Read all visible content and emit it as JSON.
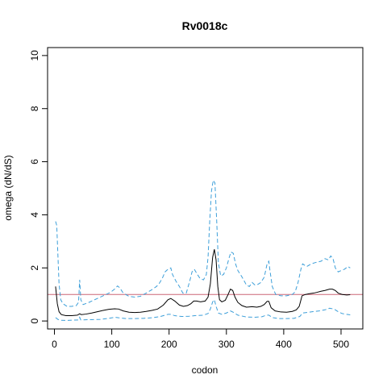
{
  "chart_data": {
    "type": "line",
    "title": "Rv0018c",
    "xlabel": "codon",
    "ylabel": "omega (dN/dS)",
    "xlim": [
      -12,
      538
    ],
    "ylim": [
      -0.3,
      10.3
    ],
    "x_ticks": [
      0,
      100,
      200,
      300,
      400,
      500
    ],
    "y_ticks": [
      0,
      2,
      4,
      6,
      8,
      10
    ],
    "grid": false,
    "legend": "none",
    "reference_line": {
      "y": 1,
      "color": "#cc6677"
    },
    "series": [
      {
        "style": "solid",
        "color": "#000000",
        "points": [
          [
            2,
            1.3
          ],
          [
            5,
            0.65
          ],
          [
            8,
            0.35
          ],
          [
            12,
            0.24
          ],
          [
            20,
            0.2
          ],
          [
            30,
            0.2
          ],
          [
            40,
            0.22
          ],
          [
            44,
            0.27
          ],
          [
            47,
            0.24
          ],
          [
            55,
            0.26
          ],
          [
            65,
            0.3
          ],
          [
            75,
            0.35
          ],
          [
            85,
            0.4
          ],
          [
            95,
            0.44
          ],
          [
            105,
            0.46
          ],
          [
            112,
            0.45
          ],
          [
            120,
            0.38
          ],
          [
            130,
            0.33
          ],
          [
            140,
            0.32
          ],
          [
            150,
            0.33
          ],
          [
            160,
            0.36
          ],
          [
            170,
            0.4
          ],
          [
            180,
            0.45
          ],
          [
            190,
            0.6
          ],
          [
            198,
            0.8
          ],
          [
            203,
            0.85
          ],
          [
            210,
            0.75
          ],
          [
            218,
            0.6
          ],
          [
            225,
            0.55
          ],
          [
            232,
            0.58
          ],
          [
            238,
            0.65
          ],
          [
            243,
            0.75
          ],
          [
            248,
            0.75
          ],
          [
            255,
            0.72
          ],
          [
            263,
            0.75
          ],
          [
            268,
            0.9
          ],
          [
            272,
            1.4
          ],
          [
            276,
            2.4
          ],
          [
            279,
            2.7
          ],
          [
            282,
            2.3
          ],
          [
            285,
            1.3
          ],
          [
            288,
            0.8
          ],
          [
            292,
            0.72
          ],
          [
            298,
            0.78
          ],
          [
            303,
            1.0
          ],
          [
            307,
            1.2
          ],
          [
            311,
            1.15
          ],
          [
            315,
            0.9
          ],
          [
            320,
            0.7
          ],
          [
            327,
            0.58
          ],
          [
            335,
            0.52
          ],
          [
            345,
            0.54
          ],
          [
            353,
            0.52
          ],
          [
            360,
            0.55
          ],
          [
            366,
            0.62
          ],
          [
            371,
            0.74
          ],
          [
            374,
            0.74
          ],
          [
            378,
            0.5
          ],
          [
            385,
            0.38
          ],
          [
            395,
            0.34
          ],
          [
            405,
            0.33
          ],
          [
            415,
            0.36
          ],
          [
            422,
            0.42
          ],
          [
            427,
            0.55
          ],
          [
            432,
            0.95
          ],
          [
            438,
            1.0
          ],
          [
            445,
            1.03
          ],
          [
            452,
            1.05
          ],
          [
            458,
            1.08
          ],
          [
            465,
            1.12
          ],
          [
            472,
            1.15
          ],
          [
            480,
            1.2
          ],
          [
            485,
            1.2
          ],
          [
            490,
            1.15
          ],
          [
            495,
            1.05
          ],
          [
            502,
            1.0
          ],
          [
            510,
            0.98
          ],
          [
            516,
            0.99
          ]
        ]
      },
      {
        "style": "dashed",
        "color": "#3d9fd9",
        "points": [
          [
            2,
            3.75
          ],
          [
            4,
            3.6
          ],
          [
            6,
            2.5
          ],
          [
            8,
            1.4
          ],
          [
            11,
            0.8
          ],
          [
            15,
            0.65
          ],
          [
            22,
            0.55
          ],
          [
            30,
            0.55
          ],
          [
            38,
            0.58
          ],
          [
            42,
            0.7
          ],
          [
            44,
            1.55
          ],
          [
            46,
            0.8
          ],
          [
            50,
            0.62
          ],
          [
            58,
            0.68
          ],
          [
            68,
            0.78
          ],
          [
            78,
            0.88
          ],
          [
            88,
            0.98
          ],
          [
            98,
            1.08
          ],
          [
            106,
            1.22
          ],
          [
            110,
            1.32
          ],
          [
            114,
            1.25
          ],
          [
            120,
            1.05
          ],
          [
            130,
            0.93
          ],
          [
            140,
            0.9
          ],
          [
            150,
            0.93
          ],
          [
            160,
            1.05
          ],
          [
            170,
            1.18
          ],
          [
            178,
            1.3
          ],
          [
            183,
            1.42
          ],
          [
            188,
            1.6
          ],
          [
            193,
            1.85
          ],
          [
            198,
            1.95
          ],
          [
            203,
            2.0
          ],
          [
            206,
            1.75
          ],
          [
            212,
            1.5
          ],
          [
            218,
            1.3
          ],
          [
            224,
            1.05
          ],
          [
            230,
            1.05
          ],
          [
            236,
            1.5
          ],
          [
            240,
            1.85
          ],
          [
            244,
            1.95
          ],
          [
            248,
            1.8
          ],
          [
            254,
            1.6
          ],
          [
            260,
            1.55
          ],
          [
            265,
            1.75
          ],
          [
            268,
            2.4
          ],
          [
            271,
            3.8
          ],
          [
            274,
            4.9
          ],
          [
            277,
            5.3
          ],
          [
            280,
            5.2
          ],
          [
            283,
            3.8
          ],
          [
            286,
            2.2
          ],
          [
            290,
            1.7
          ],
          [
            295,
            1.75
          ],
          [
            300,
            2.0
          ],
          [
            305,
            2.4
          ],
          [
            308,
            2.6
          ],
          [
            312,
            2.55
          ],
          [
            316,
            2.15
          ],
          [
            320,
            1.9
          ],
          [
            326,
            1.7
          ],
          [
            330,
            1.55
          ],
          [
            335,
            1.35
          ],
          [
            340,
            1.3
          ],
          [
            345,
            1.45
          ],
          [
            350,
            1.35
          ],
          [
            355,
            1.38
          ],
          [
            360,
            1.45
          ],
          [
            366,
            1.65
          ],
          [
            371,
            2.15
          ],
          [
            374,
            2.25
          ],
          [
            376,
            1.9
          ],
          [
            380,
            1.3
          ],
          [
            386,
            1.0
          ],
          [
            395,
            0.95
          ],
          [
            405,
            0.95
          ],
          [
            415,
            1.0
          ],
          [
            420,
            1.1
          ],
          [
            425,
            1.45
          ],
          [
            430,
            1.95
          ],
          [
            433,
            2.15
          ],
          [
            440,
            2.05
          ],
          [
            448,
            2.15
          ],
          [
            455,
            2.2
          ],
          [
            465,
            2.25
          ],
          [
            472,
            2.35
          ],
          [
            478,
            2.3
          ],
          [
            482,
            2.45
          ],
          [
            486,
            2.35
          ],
          [
            490,
            2.0
          ],
          [
            495,
            1.85
          ],
          [
            500,
            1.9
          ],
          [
            506,
            1.95
          ],
          [
            512,
            2.05
          ],
          [
            516,
            2.0
          ]
        ]
      },
      {
        "style": "dashed",
        "color": "#3d9fd9",
        "points": [
          [
            2,
            0.13
          ],
          [
            6,
            0.06
          ],
          [
            10,
            0.03
          ],
          [
            20,
            0.02
          ],
          [
            30,
            0.03
          ],
          [
            42,
            0.04
          ],
          [
            44,
            0.14
          ],
          [
            46,
            0.04
          ],
          [
            60,
            0.05
          ],
          [
            80,
            0.06
          ],
          [
            95,
            0.1
          ],
          [
            105,
            0.14
          ],
          [
            112,
            0.12
          ],
          [
            125,
            0.09
          ],
          [
            140,
            0.09
          ],
          [
            155,
            0.1
          ],
          [
            170,
            0.12
          ],
          [
            185,
            0.17
          ],
          [
            198,
            0.25
          ],
          [
            203,
            0.25
          ],
          [
            210,
            0.2
          ],
          [
            222,
            0.17
          ],
          [
            235,
            0.18
          ],
          [
            245,
            0.2
          ],
          [
            260,
            0.22
          ],
          [
            268,
            0.28
          ],
          [
            272,
            0.45
          ],
          [
            276,
            0.72
          ],
          [
            279,
            0.8
          ],
          [
            282,
            0.55
          ],
          [
            286,
            0.3
          ],
          [
            292,
            0.25
          ],
          [
            300,
            0.3
          ],
          [
            307,
            0.38
          ],
          [
            312,
            0.33
          ],
          [
            320,
            0.22
          ],
          [
            335,
            0.15
          ],
          [
            350,
            0.14
          ],
          [
            362,
            0.16
          ],
          [
            370,
            0.22
          ],
          [
            374,
            0.22
          ],
          [
            380,
            0.13
          ],
          [
            392,
            0.09
          ],
          [
            405,
            0.09
          ],
          [
            418,
            0.1
          ],
          [
            428,
            0.17
          ],
          [
            433,
            0.3
          ],
          [
            440,
            0.32
          ],
          [
            450,
            0.35
          ],
          [
            462,
            0.38
          ],
          [
            472,
            0.42
          ],
          [
            480,
            0.48
          ],
          [
            488,
            0.45
          ],
          [
            495,
            0.35
          ],
          [
            502,
            0.28
          ],
          [
            510,
            0.25
          ],
          [
            516,
            0.23
          ]
        ]
      }
    ]
  }
}
